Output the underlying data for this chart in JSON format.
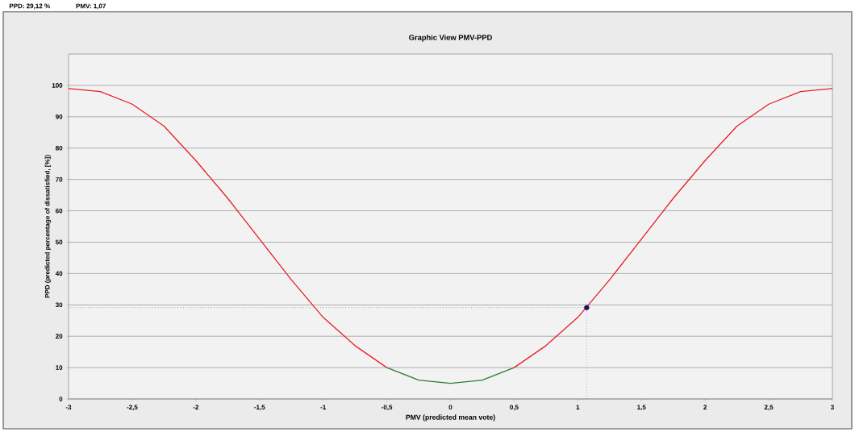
{
  "chart_data": {
    "type": "line",
    "title": "Graphic View PMV-PPD",
    "xlabel": "PMV (predicted mean vote)",
    "ylabel": "PPD (predicted percentage of dissatisfied, [%])",
    "annotations": [
      "PPD:  29,12 %",
      "PMV:  1,07"
    ],
    "xlim": [
      -3,
      3
    ],
    "ylim": [
      0,
      110
    ],
    "xticks": [
      -3,
      {
        "value": -2.5,
        "label": "-2,5"
      },
      -2,
      {
        "value": -1.5,
        "label": "-1,5"
      },
      -1,
      {
        "value": -0.5,
        "label": "-0,5"
      },
      0,
      {
        "value": 0.5,
        "label": "0,5"
      },
      1,
      {
        "value": 1.5,
        "label": "1,5"
      },
      2,
      {
        "value": 2.5,
        "label": "2,5"
      },
      3
    ],
    "yticks": [
      0,
      10,
      20,
      30,
      40,
      50,
      60,
      70,
      80,
      90,
      100
    ],
    "grid": "y",
    "line_style": "solid",
    "series": [
      {
        "color": "#e8202a",
        "x": [
          -3,
          -2.75,
          -2.5,
          -2.25,
          -2,
          -1.75,
          -1.5,
          -1.25,
          -1,
          -0.75,
          -0.5,
          0,
          0.5,
          0.75,
          1,
          1.25,
          1.5,
          1.75,
          2,
          2.25,
          2.5,
          2.75,
          3
        ],
        "values": [
          99,
          98,
          94,
          87,
          76,
          64,
          51,
          38,
          26,
          17,
          10,
          null,
          10,
          17,
          26,
          38,
          51,
          64,
          76,
          87,
          94,
          98,
          99
        ]
      },
      {
        "color": "#2e7d2e",
        "x": [
          -0.5,
          -0.25,
          0,
          0.25,
          0.5
        ],
        "values": [
          10,
          6,
          5,
          6,
          10
        ]
      },
      {
        "type": "scatter",
        "color": "#15155e",
        "x": [
          1.07
        ],
        "values": [
          29.12
        ]
      }
    ],
    "ref_lines": [
      {
        "axis": "y",
        "value": 29.12,
        "line_style": "dotted",
        "color": "#888888"
      },
      {
        "axis": "x",
        "value": 1.07,
        "line_style": "dotted",
        "color": "#888888"
      }
    ]
  }
}
